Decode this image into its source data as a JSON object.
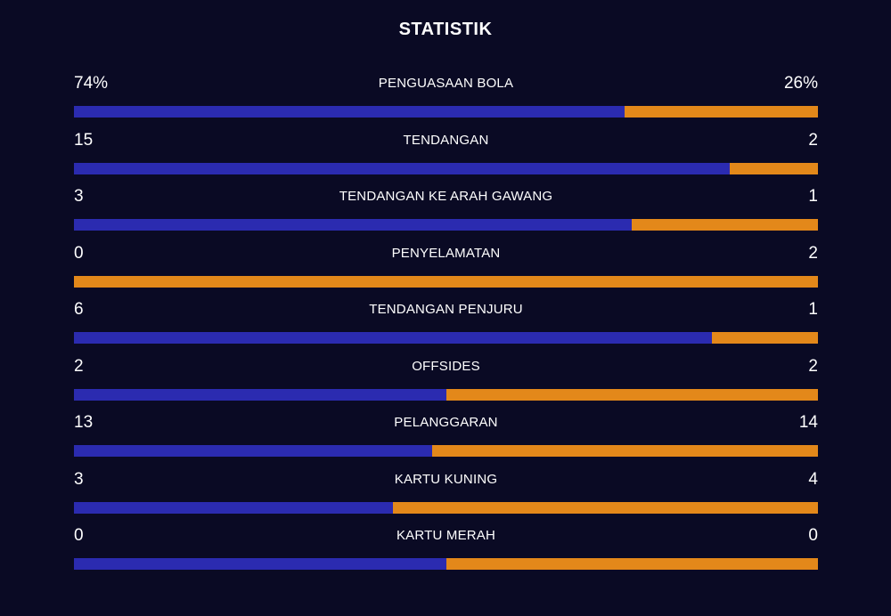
{
  "title": "STATISTIK",
  "colors": {
    "background": "#0a0a24",
    "home": "#2b2bb0",
    "away": "#e3881a",
    "text": "#ffffff"
  },
  "stats": [
    {
      "label": "PENGUASAAN BOLA",
      "home": "74%",
      "away": "26%",
      "home_share": 0.74
    },
    {
      "label": "TENDANGAN",
      "home": "15",
      "away": "2",
      "home_share": 0.882
    },
    {
      "label": "TENDANGAN KE ARAH GAWANG",
      "home": "3",
      "away": "1",
      "home_share": 0.75
    },
    {
      "label": "PENYELAMATAN",
      "home": "0",
      "away": "2",
      "home_share": 0.0
    },
    {
      "label": "TENDANGAN PENJURU",
      "home": "6",
      "away": "1",
      "home_share": 0.857
    },
    {
      "label": "OFFSIDES",
      "home": "2",
      "away": "2",
      "home_share": 0.5
    },
    {
      "label": "PELANGGARAN",
      "home": "13",
      "away": "14",
      "home_share": 0.481
    },
    {
      "label": "KARTU KUNING",
      "home": "3",
      "away": "4",
      "home_share": 0.429
    },
    {
      "label": "KARTU MERAH",
      "home": "0",
      "away": "0",
      "home_share": 0.5
    }
  ]
}
